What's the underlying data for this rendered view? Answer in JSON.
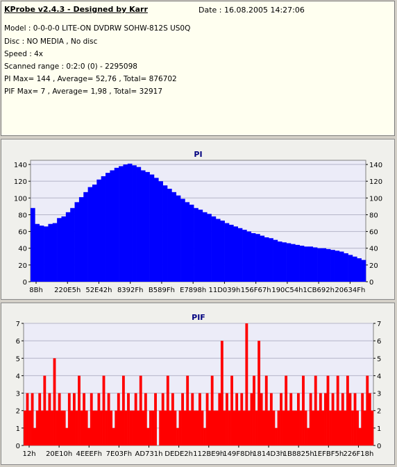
{
  "info": {
    "title": "KProbe v2.4.3 - Designed by Karr",
    "date": "Date : 16.08.2005 14:27:06",
    "lines": [
      "Model : 0-0-0-0 LITE-ON DVDRW SOHW-812S  US0Q",
      "Disc : NO MEDIA , No disc",
      "Speed : 4x",
      "Scanned range : 0:2:0 (0) - 2295098",
      "PI Max= 144 , Average= 52,76 , Total= 876702",
      "PIF Max= 7 , Average= 1,98 , Total= 32917"
    ]
  },
  "colors": {
    "pi_bar": "#0000ff",
    "pif_bar": "#ff0000",
    "plot_bg": "#ececf8",
    "grid": "#b4b4c8"
  },
  "chart_data": [
    {
      "type": "bar",
      "title": "PI",
      "ylim": [
        0,
        145
      ],
      "yticks": [
        0,
        20,
        40,
        60,
        80,
        100,
        120,
        140
      ],
      "x_tick_labels": [
        "8Bh",
        "220E5h",
        "52E42h",
        "8392Fh",
        "B589Fh",
        "E7898h",
        "11D039h",
        "156F67h",
        "190C54h",
        "1CB692h",
        "20634Fh"
      ],
      "series": [
        {
          "values": [
            88,
            69,
            67,
            66,
            69,
            70,
            76,
            78,
            83,
            88,
            95,
            101,
            107,
            113,
            116,
            122,
            126,
            130,
            133,
            136,
            138,
            140,
            141,
            139,
            137,
            133,
            131,
            128,
            124,
            120,
            115,
            111,
            107,
            103,
            99,
            95,
            92,
            88,
            86,
            83,
            81,
            78,
            75,
            73,
            70,
            68,
            66,
            64,
            62,
            60,
            58,
            57,
            55,
            53,
            52,
            50,
            48,
            47,
            46,
            45,
            44,
            43,
            42,
            42,
            41,
            40,
            40,
            39,
            38,
            37,
            36,
            34,
            32,
            30,
            28,
            26
          ]
        }
      ]
    },
    {
      "type": "bar",
      "title": "PIF",
      "ylim": [
        0,
        7
      ],
      "yticks": [
        0,
        1,
        2,
        3,
        4,
        5,
        6,
        7
      ],
      "x_tick_labels": [
        "12h",
        "20E10h",
        "4EEEFh",
        "7E03Fh",
        "AD731h",
        "DEDE2h",
        "112BE9h",
        "149F8Dh",
        "1814D3h",
        "1B8825h",
        "1EFBF5h",
        "226F18h"
      ],
      "series": [
        {
          "values": [
            2,
            3,
            2,
            3,
            1,
            2,
            3,
            2,
            4,
            2,
            3,
            2,
            5,
            2,
            3,
            2,
            2,
            1,
            3,
            2,
            3,
            2,
            4,
            2,
            3,
            2,
            1,
            3,
            2,
            2,
            3,
            2,
            4,
            2,
            3,
            2,
            1,
            2,
            3,
            2,
            4,
            2,
            3,
            2,
            2,
            3,
            2,
            4,
            2,
            3,
            1,
            2,
            2,
            3,
            0,
            2,
            3,
            2,
            4,
            2,
            3,
            2,
            1,
            2,
            3,
            2,
            4,
            2,
            3,
            2,
            2,
            3,
            2,
            1,
            3,
            2,
            4,
            2,
            2,
            3,
            6,
            2,
            3,
            2,
            4,
            2,
            3,
            2,
            3,
            2,
            7,
            2,
            3,
            4,
            2,
            6,
            3,
            2,
            4,
            2,
            3,
            2,
            1,
            2,
            3,
            2,
            4,
            2,
            3,
            2,
            2,
            3,
            2,
            4,
            2,
            1,
            3,
            2,
            4,
            2,
            3,
            2,
            3,
            4,
            2,
            3,
            2,
            4,
            2,
            3,
            2,
            4,
            3,
            2,
            3,
            2,
            1,
            3,
            2,
            4,
            3,
            2
          ]
        }
      ]
    }
  ]
}
